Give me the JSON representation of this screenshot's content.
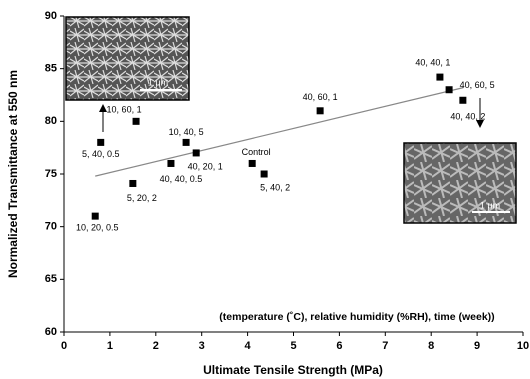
{
  "chart_data": {
    "type": "scatter",
    "x_label": "Ultimate Tensile Strength (MPa)",
    "y_label": "Normalized Transmittance at 550 nm",
    "annotation": "(temperature (˚C), relative humidity (%RH), time (week))",
    "scale_bar_labels": [
      "1 μm",
      "1 μm"
    ],
    "color": "#000000",
    "x": [
      0.68,
      0.8,
      1.57,
      1.5,
      2.33,
      2.66,
      2.88,
      4.1,
      4.36,
      5.58,
      8.19,
      8.39,
      8.69
    ],
    "values": [
      71,
      78,
      80,
      74.1,
      76,
      78,
      77,
      76,
      75,
      81,
      84.2,
      83,
      82
    ],
    "point_labels": [
      "10, 20, 0.5",
      "5, 40, 0.5",
      "10, 60, 1",
      "5, 20, 2",
      "40, 40, 0.5",
      "10, 40, 5",
      "40, 20, 1",
      "Control",
      "5, 40, 2",
      "40, 60, 1",
      "40, 40, 1",
      "40, 60, 5",
      "40, 40, 2"
    ],
    "trendline": {
      "x": [
        0.68,
        8.7
      ],
      "y": [
        74.8,
        83.2
      ],
      "color": "#888888"
    },
    "xlim": [
      0,
      10
    ],
    "xticks": [
      0,
      1,
      2,
      3,
      4,
      5,
      6,
      7,
      8,
      9,
      10
    ],
    "ylim": [
      60,
      90
    ],
    "yticks": [
      60,
      65,
      70,
      75,
      80,
      85,
      90
    ]
  }
}
